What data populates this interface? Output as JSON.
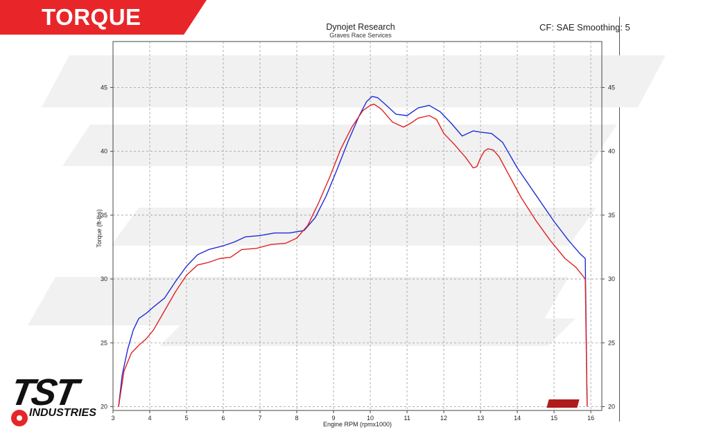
{
  "banner": {
    "label": "TORQUE",
    "color": "#e8262a"
  },
  "header": {
    "title": "Dynojet Research",
    "subtitle": "Graves Race Services",
    "settings": "CF: SAE Smoothing: 5"
  },
  "logo": {
    "brand": "TST",
    "tagline": "INDUSTRIES"
  },
  "chart_data": {
    "type": "line",
    "xlabel": "Engine RPM (rpmx1000)",
    "ylabel": "Torque (ft-lbs)",
    "xlim": [
      3,
      16.3
    ],
    "ylim": [
      19.7,
      48.6
    ],
    "xticks": [
      3,
      4,
      5,
      6,
      7,
      8,
      9,
      10,
      11,
      12,
      13,
      14,
      15,
      16
    ],
    "yticks": [
      20,
      25,
      30,
      35,
      40,
      45
    ],
    "grid": true,
    "series": [
      {
        "color": "#1f2bd6",
        "x": [
          3.15,
          3.25,
          3.4,
          3.55,
          3.7,
          3.9,
          4.1,
          4.4,
          4.7,
          5.0,
          5.3,
          5.6,
          6.0,
          6.3,
          6.6,
          7.0,
          7.4,
          7.8,
          8.2,
          8.5,
          8.8,
          9.1,
          9.4,
          9.7,
          9.9,
          10.05,
          10.2,
          10.4,
          10.7,
          11.0,
          11.3,
          11.6,
          11.9,
          12.2,
          12.5,
          12.8,
          13.0,
          13.3,
          13.6,
          14.0,
          14.5,
          15.0,
          15.4,
          15.7,
          15.85,
          15.9
        ],
        "y": [
          20.0,
          22.5,
          24.5,
          26.0,
          26.9,
          27.3,
          27.8,
          28.5,
          29.8,
          31.0,
          31.9,
          32.3,
          32.6,
          32.9,
          33.3,
          33.4,
          33.6,
          33.6,
          33.8,
          34.8,
          36.5,
          38.6,
          40.8,
          42.8,
          43.9,
          44.3,
          44.2,
          43.7,
          42.9,
          42.8,
          43.4,
          43.6,
          43.1,
          42.2,
          41.2,
          41.6,
          41.5,
          41.4,
          40.7,
          38.7,
          36.6,
          34.5,
          33.0,
          32.0,
          31.6,
          20.0
        ]
      },
      {
        "color": "#e02020",
        "x": [
          3.15,
          3.3,
          3.5,
          3.7,
          3.9,
          4.1,
          4.4,
          4.7,
          5.0,
          5.3,
          5.6,
          5.9,
          6.2,
          6.5,
          6.9,
          7.3,
          7.7,
          8.0,
          8.3,
          8.6,
          8.9,
          9.2,
          9.5,
          9.8,
          10.0,
          10.1,
          10.3,
          10.6,
          10.9,
          11.1,
          11.3,
          11.6,
          11.8,
          12.0,
          12.3,
          12.6,
          12.8,
          12.9,
          13.0,
          13.1,
          13.2,
          13.35,
          13.5,
          13.8,
          14.1,
          14.5,
          14.9,
          15.3,
          15.6,
          15.85,
          15.9
        ],
        "y": [
          20.0,
          22.8,
          24.2,
          24.8,
          25.3,
          26.0,
          27.5,
          29.0,
          30.3,
          31.1,
          31.3,
          31.6,
          31.7,
          32.3,
          32.4,
          32.7,
          32.8,
          33.2,
          34.2,
          36.0,
          38.0,
          40.2,
          41.9,
          43.2,
          43.6,
          43.7,
          43.3,
          42.3,
          41.9,
          42.2,
          42.6,
          42.8,
          42.5,
          41.4,
          40.5,
          39.5,
          38.7,
          38.8,
          39.5,
          40.0,
          40.2,
          40.1,
          39.6,
          38.0,
          36.4,
          34.6,
          33.0,
          31.6,
          30.9,
          30.0,
          20.0
        ]
      }
    ]
  }
}
